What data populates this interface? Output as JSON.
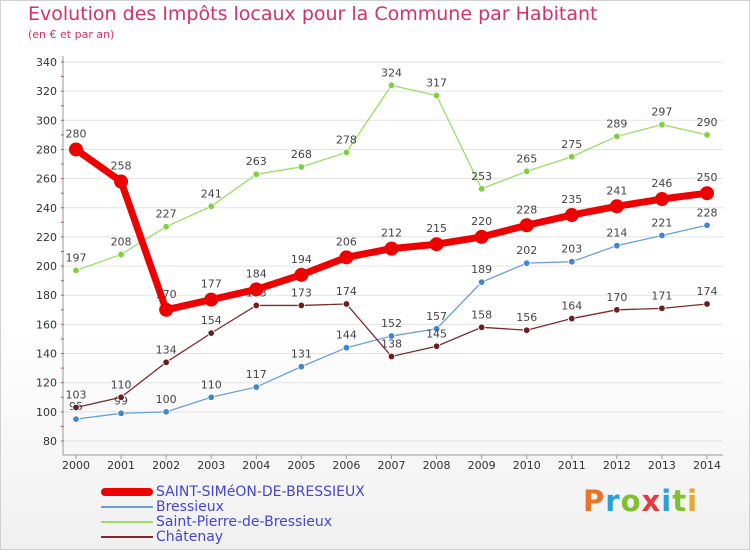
{
  "chart_data": {
    "type": "line",
    "title": "Evolution des Impôts locaux pour la Commune par Habitant",
    "subtitle": "(en € et par an)",
    "xlabel": "",
    "ylabel": "",
    "ylim": [
      80,
      340
    ],
    "yticks": [
      80,
      100,
      120,
      140,
      160,
      180,
      200,
      220,
      240,
      260,
      280,
      300,
      320,
      340
    ],
    "x": [
      "2000",
      "2001",
      "2002",
      "2003",
      "2004",
      "2005",
      "2006",
      "2007",
      "2008",
      "2009",
      "2010",
      "2011",
      "2012",
      "2013",
      "2014"
    ],
    "series": [
      {
        "name": "SAINT-SIMéON-DE-BRESSIEUX",
        "color": "#ee0000",
        "emphasis": true,
        "values": [
          280,
          258,
          170,
          177,
          184,
          194,
          206,
          212,
          215,
          220,
          228,
          235,
          241,
          246,
          250
        ],
        "labels": [
          "280",
          "258",
          "170",
          "177",
          "184",
          "194",
          "206",
          "212",
          "215",
          "220",
          "228",
          "235",
          "241",
          "246",
          "250"
        ]
      },
      {
        "name": "Bressieux",
        "color": "#6aa0d8",
        "marker": "#3f86cf",
        "values": [
          95,
          99,
          100,
          110,
          117,
          131,
          144,
          152,
          157,
          189,
          202,
          203,
          214,
          221,
          228
        ],
        "labels": [
          "95",
          "99",
          "100",
          "110",
          "117",
          "131",
          "144",
          "152",
          "157",
          "189",
          "202",
          "203",
          "214",
          "221",
          "228"
        ]
      },
      {
        "name": "Saint-Pierre-de-Bressieux",
        "color": "#99dd66",
        "marker": "#7fcf3f",
        "values": [
          197,
          208,
          227,
          241,
          263,
          268,
          278,
          324,
          317,
          253,
          265,
          275,
          289,
          297,
          290
        ],
        "labels": [
          "197",
          "208",
          "227",
          "241",
          "263",
          "268",
          "278",
          "324",
          "317",
          "253",
          "265",
          "275",
          "289",
          "297",
          "290"
        ]
      },
      {
        "name": "Châtenay",
        "color": "#7a2c2c",
        "marker": "#6a1f1f",
        "values": [
          103,
          110,
          134,
          154,
          173,
          173,
          174,
          138,
          145,
          158,
          156,
          164,
          170,
          171,
          174
        ],
        "labels": [
          "103",
          "110",
          "134",
          "154",
          "173",
          "173",
          "174",
          "138",
          "145",
          "158",
          "156",
          "164",
          "170",
          "171",
          "174"
        ]
      }
    ]
  },
  "legend": {
    "items": [
      {
        "label": "SAINT-SIMéON-DE-BRESSIEUX",
        "color": "#ee0000"
      },
      {
        "label": "Bressieux",
        "color": "#6aa0d8"
      },
      {
        "label": "Saint-Pierre-de-Bressieux",
        "color": "#99dd66"
      },
      {
        "label": "Châtenay",
        "color": "#7a2c2c"
      }
    ]
  },
  "logo": {
    "text": "Proxiti",
    "letter_colors": [
      "#e8742a",
      "#2aa0d8",
      "#7fbf30",
      "#e23c3c",
      "#2aa0d8",
      "#7fbf30",
      "#e8a72a"
    ]
  }
}
